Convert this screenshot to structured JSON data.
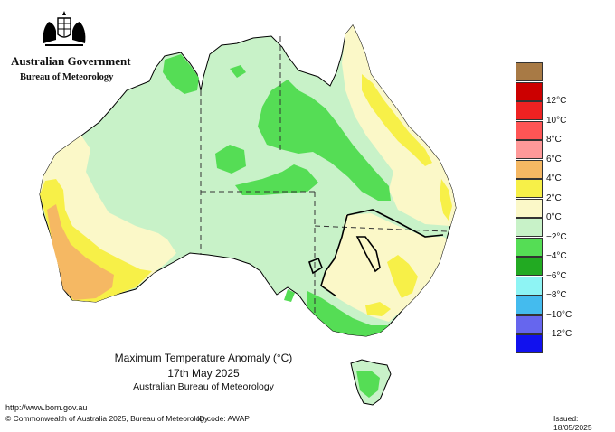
{
  "header": {
    "org": "Australian Government",
    "dept": "Bureau of Meteorology"
  },
  "title": {
    "line1": "Maximum Temperature Anomaly (°C)",
    "line2": "17th May 2025",
    "line3": "Australian Bureau of Meteorology"
  },
  "legend": {
    "items": [
      {
        "label": "",
        "color": "#a87a45"
      },
      {
        "label": "12°C",
        "color": "#cc0000"
      },
      {
        "label": "10°C",
        "color": "#ee2222"
      },
      {
        "label": "8°C",
        "color": "#ff5555"
      },
      {
        "label": "6°C",
        "color": "#ff9999"
      },
      {
        "label": "4°C",
        "color": "#f5b863"
      },
      {
        "label": "2°C",
        "color": "#f7f048"
      },
      {
        "label": "0°C",
        "color": "#fbf8c8"
      },
      {
        "label": "−2°C",
        "color": "#c8f2c8"
      },
      {
        "label": "−4°C",
        "color": "#55dd55"
      },
      {
        "label": "−6°C",
        "color": "#22aa22"
      },
      {
        "label": "−8°C",
        "color": "#8ef4f4"
      },
      {
        "label": "−10°C",
        "color": "#44bbee"
      },
      {
        "label": "−12°C",
        "color": "#6666ee"
      },
      {
        "label": "",
        "color": "#1111ee"
      }
    ]
  },
  "footer": {
    "url": "http://www.bom.gov.au",
    "copyright": "© Commonwealth of Australia 2025, Bureau of Meteorology",
    "id_code": "ID code: AWAP",
    "issued": "Issued: 18/05/2025"
  }
}
